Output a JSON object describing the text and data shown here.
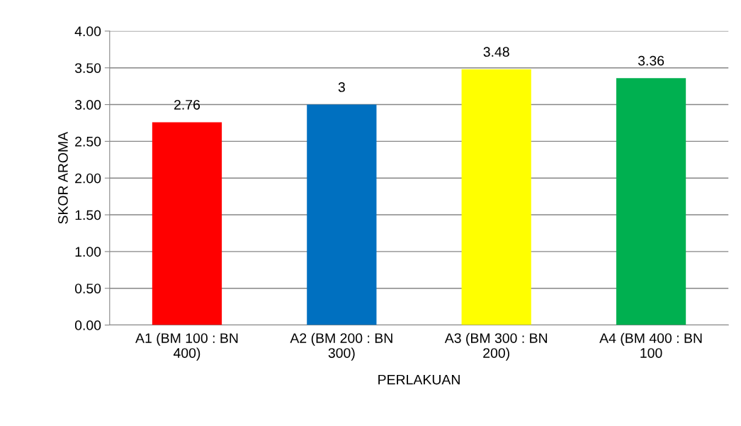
{
  "chart_data": {
    "type": "bar",
    "xlabel": "PERLAKUAN",
    "ylabel": "SKOR AROMA",
    "categories": [
      "A1 (BM 100 : BN\n400)",
      "A2 (BM 200 : BN\n300)",
      "A3 (BM 300 : BN\n200)",
      "A4 (BM 400 : BN\n100"
    ],
    "values": [
      2.76,
      3,
      3.48,
      3.36
    ],
    "value_labels": [
      "2.76",
      "3",
      "3.48",
      "3.36"
    ],
    "colors": [
      "#ff0000",
      "#0070c0",
      "#ffff00",
      "#00b050"
    ],
    "ylim": [
      0,
      4
    ],
    "yticks": [
      {
        "value": 0,
        "label": "0.00"
      },
      {
        "value": 0.5,
        "label": "0.50"
      },
      {
        "value": 1,
        "label": "1.00"
      },
      {
        "value": 1.5,
        "label": "1.50"
      },
      {
        "value": 2,
        "label": "2.00"
      },
      {
        "value": 2.5,
        "label": "2.50"
      },
      {
        "value": 3,
        "label": "3.00"
      },
      {
        "value": 3.5,
        "label": "3.50"
      },
      {
        "value": 4,
        "label": "4.00"
      }
    ],
    "grid": "y",
    "legend": false
  }
}
